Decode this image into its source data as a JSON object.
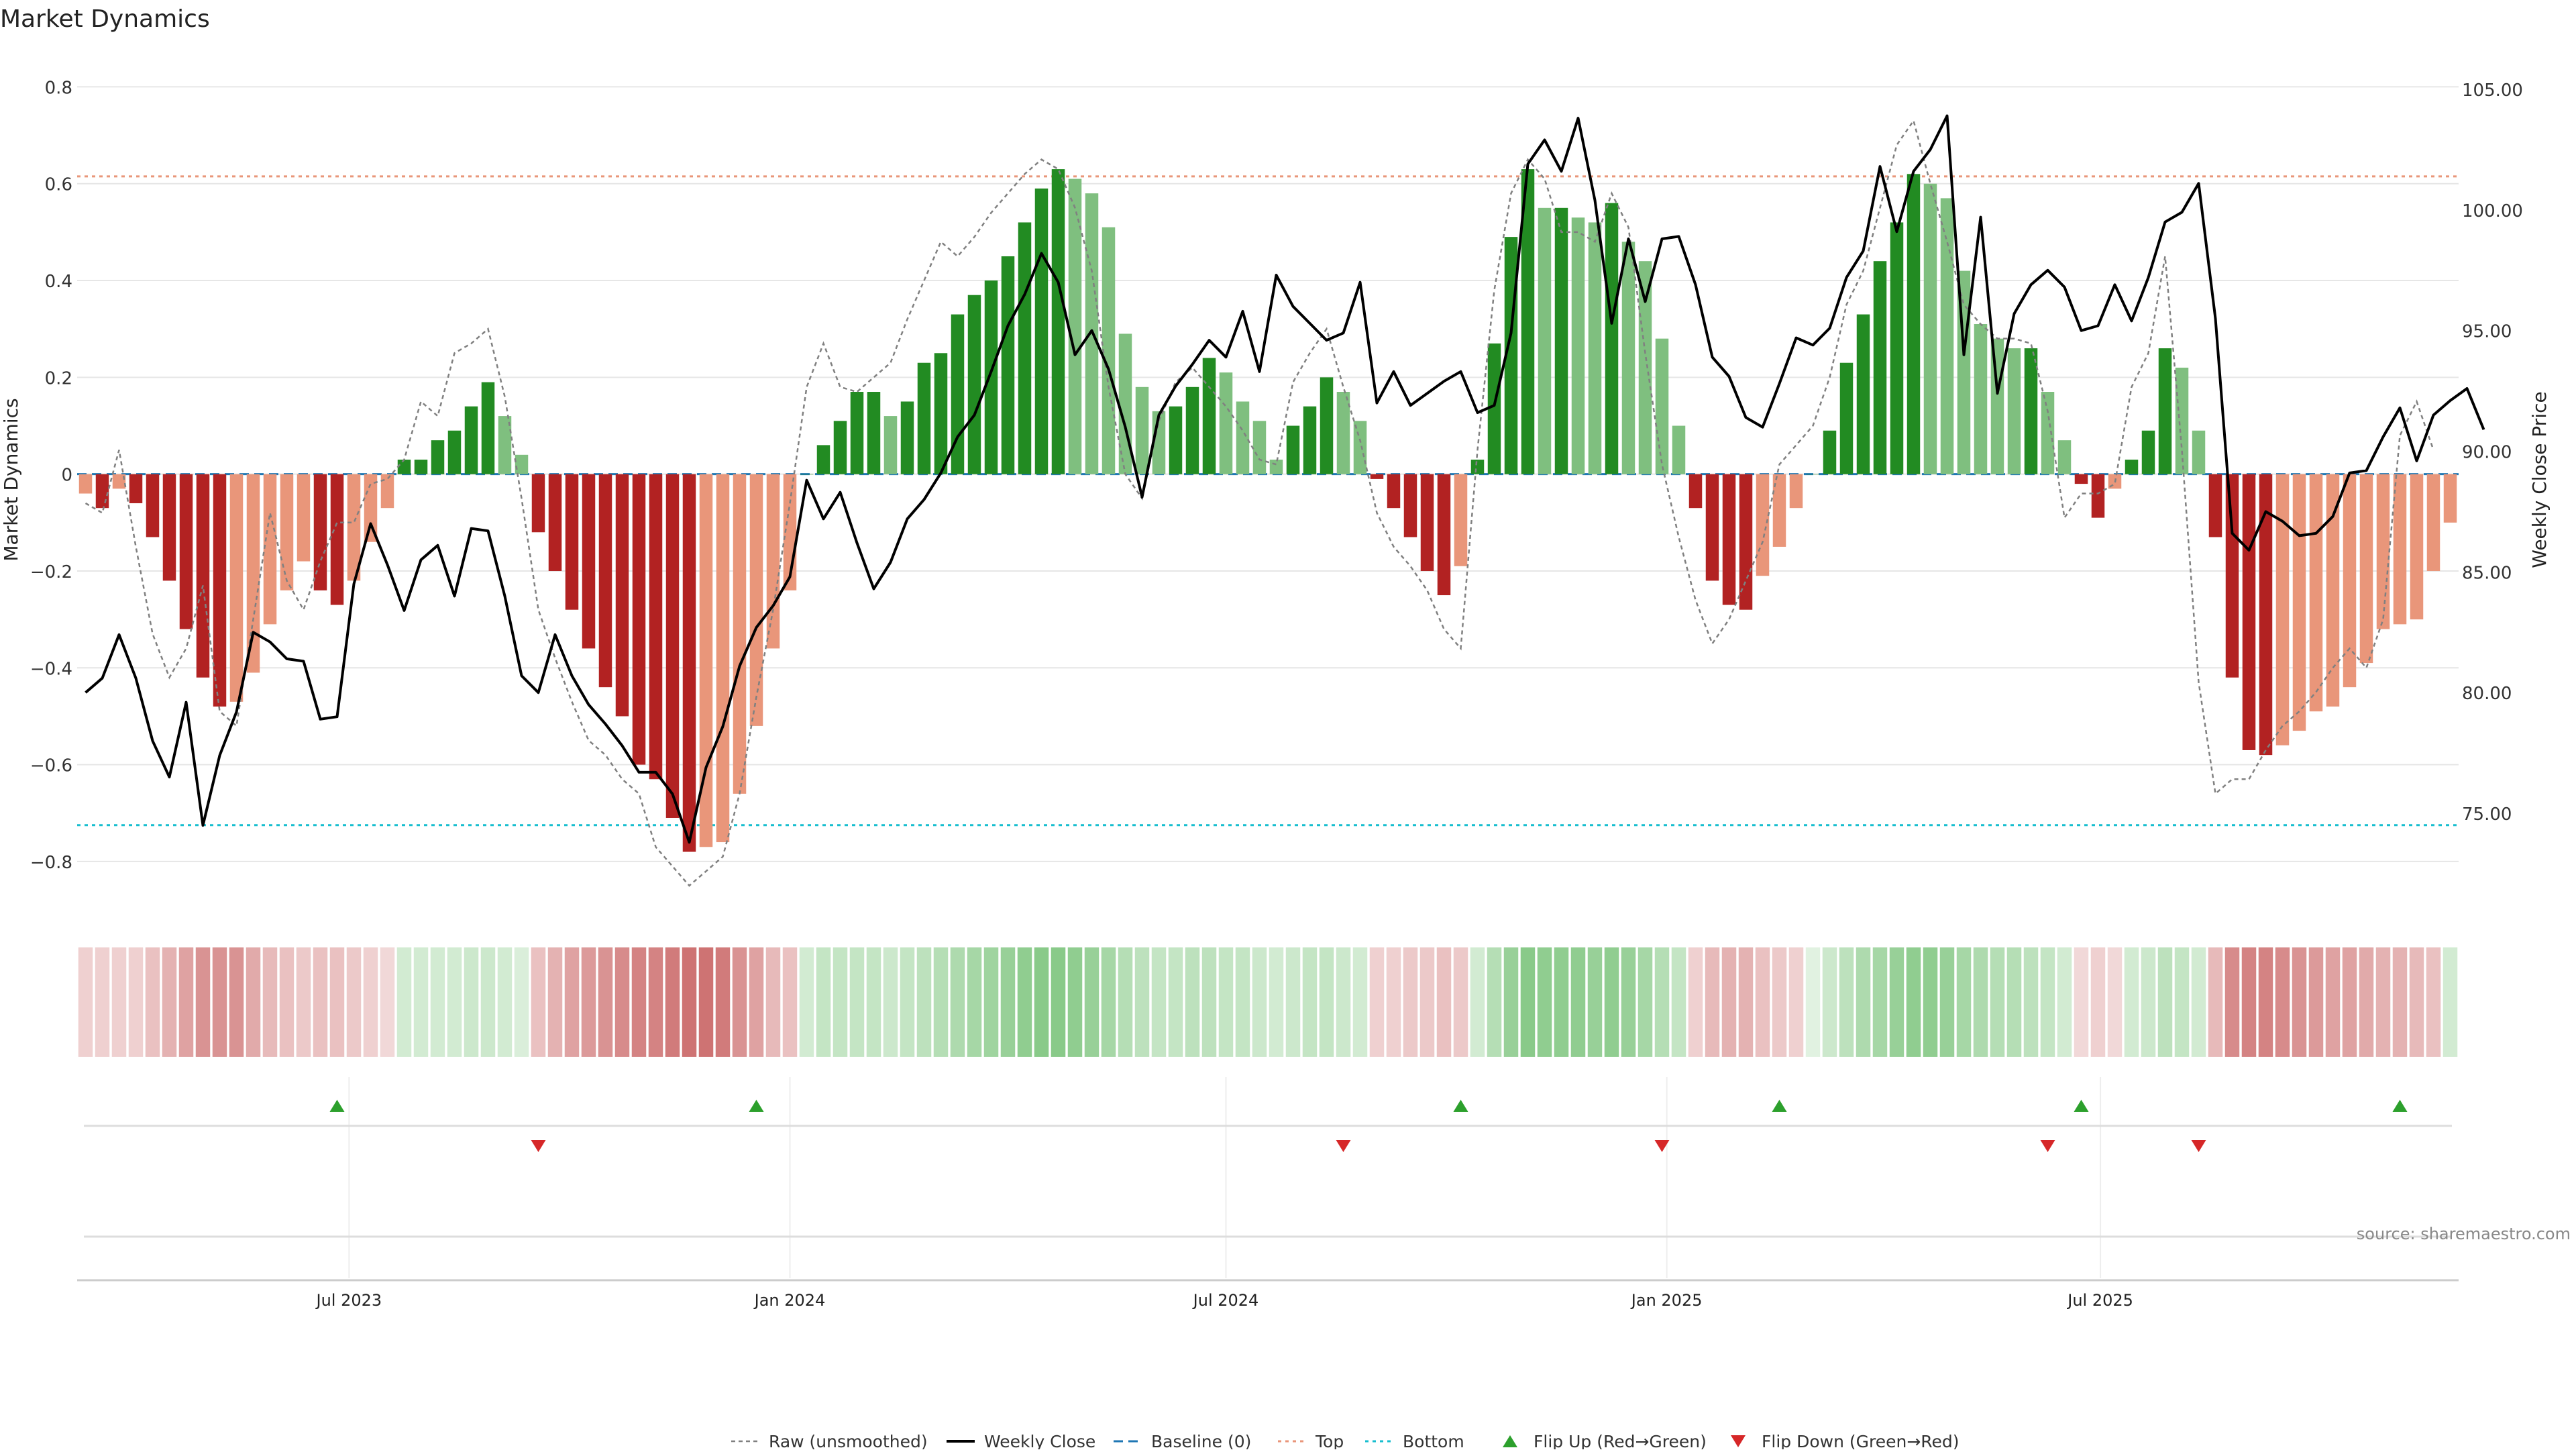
{
  "chart_data": {
    "type": "bar",
    "title": "Market Dynamics",
    "ylabel": "Market Dynamics",
    "y2label": "Weekly Close Price",
    "ylim": [
      -0.85,
      0.82
    ],
    "y2lim": [
      72.0,
      105.5
    ],
    "yticks": [
      0.8,
      0.6,
      0.4,
      0.2,
      0,
      -0.2,
      -0.4,
      -0.6,
      -0.8
    ],
    "yticklabels": [
      "0.8",
      "0.6",
      "0.4",
      "0.2",
      "0",
      "−0.2",
      "−0.4",
      "−0.6",
      "−0.8"
    ],
    "y2ticks": [
      105,
      100,
      95,
      90,
      85,
      80,
      75
    ],
    "y2ticklabels": [
      "105.00",
      "100.00",
      "95.00",
      "90.00",
      "85.00",
      "80.00",
      "75.00"
    ],
    "x_start": "2023-03-13",
    "x_step_days": 7,
    "x_end_date": "2025-11-03",
    "xticks": [
      {
        "date": "2023-07-01",
        "label": "Jul 2023"
      },
      {
        "date": "2024-01-01",
        "label": "Jan 2024"
      },
      {
        "date": "2024-07-01",
        "label": "Jul 2024"
      },
      {
        "date": "2025-01-01",
        "label": "Jan 2025"
      },
      {
        "date": "2025-07-01",
        "label": "Jul 2025"
      }
    ],
    "top_line": 0.615,
    "bottom_line": -0.725,
    "baseline": 0,
    "values": [
      -0.04,
      -0.07,
      -0.03,
      -0.06,
      -0.13,
      -0.22,
      -0.32,
      -0.42,
      -0.48,
      -0.47,
      -0.41,
      -0.31,
      -0.24,
      -0.18,
      -0.24,
      -0.27,
      -0.22,
      -0.14,
      -0.07,
      0.03,
      0.03,
      0.07,
      0.09,
      0.14,
      0.19,
      0.12,
      0.04,
      -0.12,
      -0.2,
      -0.28,
      -0.36,
      -0.44,
      -0.5,
      -0.6,
      -0.63,
      -0.71,
      -0.78,
      -0.77,
      -0.76,
      -0.66,
      -0.52,
      -0.36,
      -0.24,
      0.0,
      0.06,
      0.11,
      0.17,
      0.17,
      0.12,
      0.15,
      0.23,
      0.25,
      0.33,
      0.37,
      0.4,
      0.45,
      0.52,
      0.59,
      0.63,
      0.61,
      0.58,
      0.51,
      0.29,
      0.18,
      0.13,
      0.14,
      0.18,
      0.24,
      0.21,
      0.15,
      0.11,
      0.03,
      0.1,
      0.14,
      0.2,
      0.17,
      0.11,
      -0.01,
      -0.07,
      -0.13,
      -0.2,
      -0.25,
      -0.19,
      0.03,
      0.27,
      0.49,
      0.63,
      0.55,
      0.55,
      0.53,
      0.52,
      0.56,
      0.48,
      0.44,
      0.28,
      0.1,
      -0.07,
      -0.22,
      -0.27,
      -0.28,
      -0.21,
      -0.15,
      -0.07,
      0.0,
      0.09,
      0.23,
      0.33,
      0.44,
      0.52,
      0.62,
      0.6,
      0.57,
      0.42,
      0.31,
      0.28,
      0.26,
      0.26,
      0.17,
      0.07,
      -0.02,
      -0.09,
      -0.03,
      0.03,
      0.09,
      0.26,
      0.22,
      0.09,
      -0.13,
      -0.42,
      -0.57,
      -0.58,
      -0.56,
      -0.53,
      -0.49,
      -0.48,
      -0.44,
      -0.39,
      -0.32,
      -0.31,
      -0.3,
      -0.2,
      -0.1
    ],
    "raw": [
      -0.06,
      -0.08,
      0.05,
      -0.15,
      -0.33,
      -0.42,
      -0.36,
      -0.23,
      -0.49,
      -0.52,
      -0.3,
      -0.08,
      -0.22,
      -0.28,
      -0.18,
      -0.1,
      -0.1,
      -0.02,
      -0.01,
      0.03,
      0.15,
      0.12,
      0.25,
      0.27,
      0.3,
      0.16,
      -0.05,
      -0.28,
      -0.38,
      -0.47,
      -0.55,
      -0.58,
      -0.63,
      -0.66,
      -0.77,
      -0.81,
      -0.85,
      -0.82,
      -0.79,
      -0.66,
      -0.46,
      -0.28,
      -0.06,
      0.18,
      0.27,
      0.18,
      0.17,
      0.2,
      0.23,
      0.32,
      0.4,
      0.48,
      0.45,
      0.49,
      0.54,
      0.58,
      0.62,
      0.65,
      0.63,
      0.55,
      0.42,
      0.18,
      0.0,
      -0.05,
      0.11,
      0.19,
      0.22,
      0.18,
      0.14,
      0.09,
      0.03,
      0.02,
      0.19,
      0.25,
      0.3,
      0.18,
      0.07,
      -0.08,
      -0.15,
      -0.19,
      -0.24,
      -0.32,
      -0.36,
      0.05,
      0.38,
      0.58,
      0.65,
      0.61,
      0.5,
      0.5,
      0.48,
      0.58,
      0.51,
      0.25,
      0.02,
      -0.13,
      -0.26,
      -0.35,
      -0.3,
      -0.22,
      -0.14,
      0.02,
      0.06,
      0.1,
      0.2,
      0.35,
      0.42,
      0.55,
      0.68,
      0.73,
      0.6,
      0.48,
      0.35,
      0.31,
      0.28,
      0.28,
      0.27,
      0.13,
      -0.09,
      -0.04,
      -0.04,
      -0.02,
      0.18,
      0.25,
      0.45,
      0.05,
      -0.43,
      -0.66,
      -0.63,
      -0.63,
      -0.57,
      -0.52,
      -0.49,
      -0.45,
      -0.4,
      -0.36,
      -0.4,
      -0.3,
      0.08,
      0.15,
      0.05
    ],
    "weekly_close": [
      80.0,
      80.6,
      82.4,
      80.6,
      78.0,
      76.5,
      79.6,
      74.5,
      77.4,
      79.2,
      82.5,
      82.1,
      81.4,
      81.3,
      78.9,
      79.0,
      84.5,
      87.0,
      85.3,
      83.4,
      85.5,
      86.1,
      84.0,
      86.8,
      86.7,
      84.0,
      80.7,
      80.0,
      82.4,
      80.7,
      79.5,
      78.7,
      77.8,
      76.7,
      76.7,
      75.8,
      73.8,
      76.9,
      78.6,
      81.1,
      82.7,
      83.6,
      84.8,
      88.8,
      87.2,
      88.3,
      86.2,
      84.3,
      85.4,
      87.2,
      88.0,
      89.1,
      90.6,
      91.5,
      93.3,
      95.2,
      96.5,
      98.2,
      97.0,
      94.0,
      95.0,
      93.4,
      91.0,
      88.1,
      91.5,
      92.7,
      93.6,
      94.6,
      93.9,
      95.8,
      93.3,
      97.3,
      96.0,
      95.3,
      94.6,
      94.9,
      97.0,
      92.0,
      93.3,
      91.9,
      92.4,
      92.9,
      93.3,
      91.6,
      91.9,
      94.9,
      101.9,
      102.9,
      101.6,
      103.8,
      100.4,
      95.3,
      98.8,
      96.2,
      98.8,
      98.9,
      96.9,
      93.9,
      93.1,
      91.4,
      91.0,
      92.8,
      94.7,
      94.4,
      95.1,
      97.2,
      98.3,
      101.8,
      99.1,
      101.6,
      102.5,
      103.9,
      94.0,
      99.7,
      92.4,
      95.7,
      96.9,
      97.5,
      96.8,
      95.0,
      95.2,
      96.9,
      95.4,
      97.2,
      99.5,
      99.9,
      101.1,
      95.5,
      86.6,
      85.9,
      87.5,
      87.1,
      86.5,
      86.6,
      87.3,
      89.1,
      89.2,
      90.6,
      91.8,
      89.6,
      91.5,
      92.1,
      92.6,
      90.9
    ],
    "shading": [
      -0.3,
      -0.3,
      -0.3,
      -0.3,
      -0.4,
      -0.5,
      -0.6,
      -0.7,
      -0.7,
      -0.7,
      -0.55,
      -0.45,
      -0.4,
      -0.35,
      -0.4,
      -0.4,
      -0.35,
      -0.3,
      -0.25,
      0.3,
      0.3,
      0.3,
      0.3,
      0.35,
      0.35,
      0.3,
      0.25,
      -0.4,
      -0.5,
      -0.6,
      -0.65,
      -0.7,
      -0.75,
      -0.8,
      -0.8,
      -0.85,
      -0.9,
      -0.9,
      -0.85,
      -0.7,
      -0.6,
      -0.45,
      -0.4,
      0.3,
      0.4,
      0.4,
      0.4,
      0.4,
      0.35,
      0.4,
      0.45,
      0.5,
      0.55,
      0.6,
      0.65,
      0.7,
      0.75,
      0.8,
      0.8,
      0.75,
      0.7,
      0.6,
      0.5,
      0.45,
      0.4,
      0.4,
      0.45,
      0.45,
      0.4,
      0.4,
      0.35,
      0.3,
      0.35,
      0.4,
      0.4,
      0.35,
      0.3,
      -0.3,
      -0.3,
      -0.35,
      -0.35,
      -0.4,
      -0.35,
      0.3,
      0.5,
      0.7,
      0.8,
      0.75,
      0.75,
      0.75,
      0.7,
      0.75,
      0.7,
      0.6,
      0.5,
      0.4,
      -0.3,
      -0.45,
      -0.5,
      -0.5,
      -0.4,
      -0.35,
      -0.3,
      0.2,
      0.35,
      0.45,
      0.55,
      0.6,
      0.7,
      0.75,
      0.75,
      0.7,
      0.6,
      0.55,
      0.5,
      0.5,
      0.45,
      0.4,
      0.3,
      -0.25,
      -0.3,
      -0.25,
      0.3,
      0.35,
      0.45,
      0.4,
      0.3,
      -0.45,
      -0.75,
      -0.8,
      -0.8,
      -0.75,
      -0.7,
      -0.65,
      -0.6,
      -0.6,
      -0.55,
      -0.5,
      -0.5,
      -0.45,
      -0.4,
      0.3
    ],
    "flip_up_dates": [
      "2023-06-26",
      "2023-12-18",
      "2024-10-07",
      "2025-02-17",
      "2025-06-23",
      "2025-11-03"
    ],
    "flip_down_dates": [
      "2023-09-18",
      "2024-08-19",
      "2024-12-30",
      "2025-06-09",
      "2025-08-11"
    ],
    "legend": [
      {
        "key": "raw",
        "label": "Raw (unsmoothed)"
      },
      {
        "key": "close",
        "label": "Weekly Close"
      },
      {
        "key": "baseline",
        "label": "Baseline (0)"
      },
      {
        "key": "top",
        "label": "Top"
      },
      {
        "key": "bottom",
        "label": "Bottom"
      },
      {
        "key": "flip_up",
        "label": "Flip Up (Red→Green)"
      },
      {
        "key": "flip_down",
        "label": "Flip Down (Green→Red)"
      }
    ],
    "source": "source: sharemaestro.com"
  },
  "colors": {
    "pos_strong": "#228b22",
    "pos_light": "#7fbf7f",
    "neg_strong": "#b22222",
    "neg_light": "#e9967a",
    "close_line": "#000000",
    "raw_line": "#808080",
    "baseline": "#1f77b4",
    "top_line": "#e9967a",
    "bottom_line": "#17becf",
    "flip_up": "#2ca02c",
    "flip_down": "#d62728",
    "shade_pos": "#2ca02c",
    "shade_neg": "#b22222"
  }
}
